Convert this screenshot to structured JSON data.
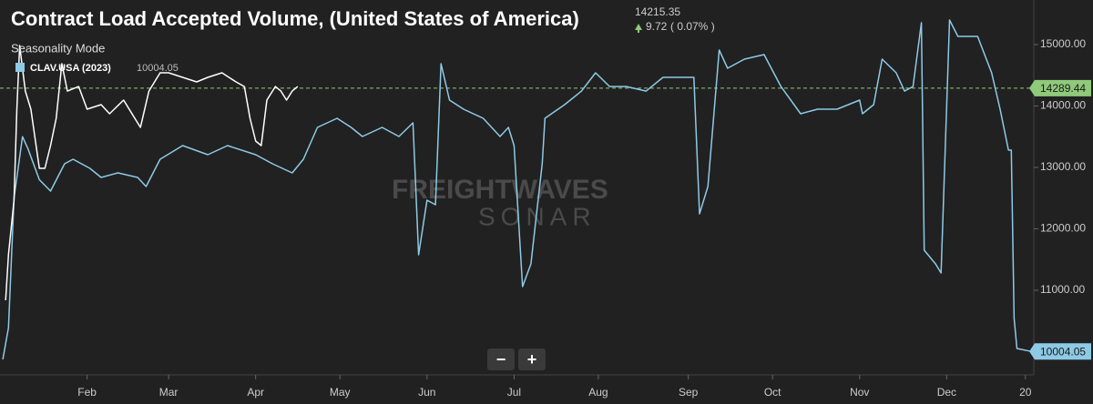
{
  "chart_data": {
    "type": "line",
    "title": "Contract Load Accepted Volume, (United States of America)",
    "subtitle": "Seasonality Mode",
    "last_price": 14215.35,
    "change": 9.72,
    "change_pct": "( 0.07% )",
    "watermark": [
      "FREIGHTWAVES",
      "SONAR"
    ],
    "controls": [
      "−",
      "+"
    ],
    "reference_line": {
      "value": 14289.44,
      "label": "14289.44",
      "color": "#8fc97a"
    },
    "xlim": [
      0,
      368
    ],
    "xticks": [
      {
        "value": 31,
        "label": "Feb"
      },
      {
        "value": 60,
        "label": "Mar"
      },
      {
        "value": 91,
        "label": "Apr"
      },
      {
        "value": 121,
        "label": "May"
      },
      {
        "value": 152,
        "label": "Jun"
      },
      {
        "value": 183,
        "label": "Jul"
      },
      {
        "value": 213,
        "label": "Aug"
      },
      {
        "value": 245,
        "label": "Sep"
      },
      {
        "value": 275,
        "label": "Oct"
      },
      {
        "value": 306,
        "label": "Nov"
      },
      {
        "value": 337,
        "label": "Dec"
      },
      {
        "value": 365,
        "label": "20"
      }
    ],
    "ylim": [
      9800,
      15725
    ],
    "yticks": [
      {
        "value": 11000,
        "label": "11000.00"
      },
      {
        "value": 12000,
        "label": "12000.00"
      },
      {
        "value": 13000,
        "label": "13000.00"
      },
      {
        "value": 14000,
        "label": "14000.00"
      },
      {
        "value": 15000,
        "label": "15000.00"
      }
    ],
    "series": [
      {
        "name": "CLAV.USA (2023)",
        "color": "#8ecae6",
        "x": [
          1,
          3,
          5,
          8,
          10,
          14,
          18,
          23,
          26,
          32,
          36,
          42,
          49,
          52,
          57,
          65,
          74,
          81,
          91,
          97,
          104,
          108,
          113,
          120,
          125,
          129,
          136,
          142,
          147,
          149,
          152,
          155,
          157,
          160,
          165,
          172,
          178,
          181,
          183,
          186,
          189,
          193,
          194,
          201,
          207,
          212,
          217,
          223,
          230,
          236,
          243,
          247,
          249,
          252,
          256,
          259,
          265,
          272,
          278,
          285,
          291,
          298,
          306,
          307,
          311,
          314,
          319,
          322,
          325,
          328,
          329,
          333,
          335,
          338,
          341,
          348,
          353,
          356,
          359,
          360,
          361,
          362,
          367
        ],
        "values": [
          9874,
          10390,
          12500,
          13500,
          13300,
          12800,
          12615,
          13059,
          13133,
          12985,
          12837,
          12911,
          12837,
          12689,
          13133,
          13355,
          13207,
          13355,
          13207,
          13059,
          12911,
          13133,
          13651,
          13800,
          13651,
          13503,
          13651,
          13503,
          13725,
          11578,
          12466,
          12392,
          14688,
          14095,
          13947,
          13800,
          13503,
          13651,
          13355,
          11059,
          11429,
          13059,
          13800,
          14021,
          14243,
          14540,
          14317,
          14317,
          14243,
          14466,
          14466,
          14466,
          12244,
          12689,
          14910,
          14614,
          14762,
          14836,
          14317,
          13873,
          13947,
          13947,
          14095,
          13873,
          14021,
          14762,
          14540,
          14243,
          14317,
          15354,
          11652,
          11429,
          11281,
          15399,
          15132,
          15132,
          14540,
          13947,
          13281,
          13281,
          10541,
          10052,
          10004.05
        ]
      },
      {
        "color": "#ffffff",
        "x": [
          2,
          3,
          5,
          6,
          7,
          9,
          11,
          14,
          16,
          18,
          20,
          22,
          24,
          28,
          31,
          36,
          39,
          44,
          48,
          50,
          53,
          57,
          60,
          65,
          70,
          74,
          79,
          84,
          87,
          89,
          91,
          93,
          95,
          98,
          100,
          102,
          104,
          106
        ],
        "values": [
          10837,
          11578,
          12466,
          13947,
          14984,
          14243,
          13947,
          12985,
          12985,
          13355,
          13800,
          14688,
          14243,
          14317,
          13947,
          14021,
          13873,
          14095,
          13800,
          13651,
          14243,
          14540,
          14540,
          14466,
          14392,
          14466,
          14540,
          14392,
          14317,
          13800,
          13429,
          13355,
          14095,
          14317,
          14243,
          14095,
          14243,
          14317
        ]
      }
    ]
  }
}
